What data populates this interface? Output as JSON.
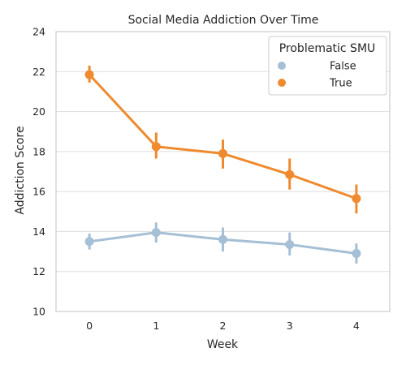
{
  "chart_data": {
    "type": "line",
    "title": "Social Media Addiction Over Time",
    "xlabel": "Week",
    "ylabel": "Addiction Score",
    "categories": [
      "0",
      "1",
      "2",
      "3",
      "4"
    ],
    "ylim": [
      10,
      24
    ],
    "yticks": [
      10,
      12,
      14,
      16,
      18,
      20,
      22,
      24
    ],
    "grid": true,
    "legend": {
      "title": "Problematic SMU",
      "placement": "top-right"
    },
    "series": [
      {
        "name": "False",
        "color": "#a5bfd4",
        "values": [
          13.5,
          13.95,
          13.6,
          13.35,
          12.9
        ],
        "ci_low": [
          13.1,
          13.45,
          13.0,
          12.8,
          12.4
        ],
        "ci_high": [
          13.9,
          14.45,
          14.2,
          13.95,
          13.4
        ]
      },
      {
        "name": "True",
        "color": "#ef8a2e",
        "values": [
          21.85,
          18.25,
          17.9,
          16.85,
          15.65
        ],
        "ci_low": [
          21.45,
          17.65,
          17.15,
          16.1,
          14.9
        ],
        "ci_high": [
          22.3,
          18.95,
          18.6,
          17.65,
          16.35
        ]
      }
    ]
  }
}
